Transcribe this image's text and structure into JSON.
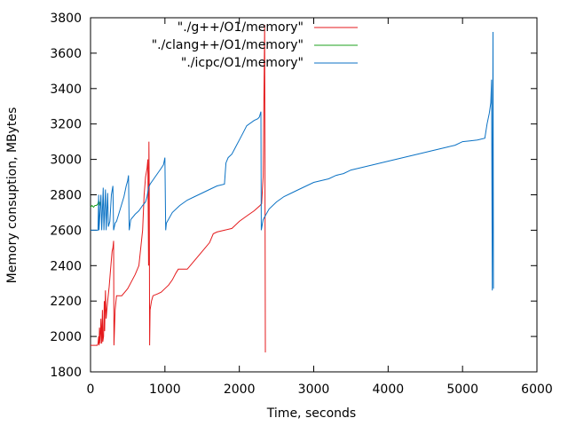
{
  "chart_data": {
    "type": "line",
    "title": "",
    "xlabel": "Time, seconds",
    "ylabel": "Memory consuption, MBytes",
    "xlim": [
      0,
      6000
    ],
    "ylim": [
      1800,
      3800
    ],
    "xticks": [
      0,
      1000,
      2000,
      3000,
      4000,
      5000,
      6000
    ],
    "yticks": [
      1800,
      2000,
      2200,
      2400,
      2600,
      2800,
      3000,
      3200,
      3400,
      3600,
      3800
    ],
    "grid": false,
    "legend_position": "top-right",
    "series": [
      {
        "name": "\"./g++/O1/memory\"",
        "color": "#e41a1c",
        "points": [
          [
            0,
            1950
          ],
          [
            90,
            1950
          ],
          [
            100,
            1960
          ],
          [
            110,
            2000
          ],
          [
            115,
            1950
          ],
          [
            120,
            2050
          ],
          [
            130,
            1960
          ],
          [
            140,
            2100
          ],
          [
            150,
            1960
          ],
          [
            160,
            2150
          ],
          [
            165,
            1970
          ],
          [
            175,
            2000
          ],
          [
            185,
            2200
          ],
          [
            190,
            2030
          ],
          [
            200,
            2260
          ],
          [
            210,
            2100
          ],
          [
            220,
            2150
          ],
          [
            230,
            2200
          ],
          [
            250,
            2280
          ],
          [
            270,
            2380
          ],
          [
            290,
            2480
          ],
          [
            300,
            2500
          ],
          [
            310,
            2540
          ],
          [
            315,
            1950
          ],
          [
            330,
            2150
          ],
          [
            350,
            2230
          ],
          [
            380,
            2230
          ],
          [
            420,
            2230
          ],
          [
            460,
            2250
          ],
          [
            500,
            2270
          ],
          [
            550,
            2310
          ],
          [
            600,
            2350
          ],
          [
            650,
            2400
          ],
          [
            700,
            2600
          ],
          [
            720,
            2800
          ],
          [
            740,
            2900
          ],
          [
            760,
            2950
          ],
          [
            770,
            3000
          ],
          [
            780,
            2400
          ],
          [
            785,
            3100
          ],
          [
            790,
            2800
          ],
          [
            795,
            1950
          ],
          [
            800,
            2150
          ],
          [
            820,
            2200
          ],
          [
            840,
            2230
          ],
          [
            900,
            2240
          ],
          [
            950,
            2250
          ],
          [
            1000,
            2270
          ],
          [
            1050,
            2290
          ],
          [
            1100,
            2320
          ],
          [
            1150,
            2360
          ],
          [
            1180,
            2380
          ],
          [
            1300,
            2380
          ],
          [
            1400,
            2430
          ],
          [
            1500,
            2480
          ],
          [
            1600,
            2530
          ],
          [
            1650,
            2580
          ],
          [
            1700,
            2590
          ],
          [
            1800,
            2600
          ],
          [
            1900,
            2610
          ],
          [
            2000,
            2650
          ],
          [
            2100,
            2680
          ],
          [
            2200,
            2710
          ],
          [
            2280,
            2740
          ],
          [
            2300,
            2750
          ],
          [
            2320,
            2900
          ],
          [
            2340,
            3760
          ],
          [
            2350,
            1910
          ]
        ]
      },
      {
        "name": "\"./clang++/O1/memory\"",
        "color": "#1ea01e",
        "points": [
          [
            0,
            2730
          ],
          [
            20,
            2740
          ],
          [
            40,
            2730
          ],
          [
            60,
            2740
          ],
          [
            80,
            2740
          ],
          [
            100,
            2750
          ],
          [
            110,
            2770
          ],
          [
            120,
            2740
          ],
          [
            125,
            2760
          ]
        ]
      },
      {
        "name": "\"./icpc/O1/memory\"",
        "color": "#0b72c4",
        "points": [
          [
            0,
            2600
          ],
          [
            100,
            2600
          ],
          [
            110,
            2800
          ],
          [
            115,
            2600
          ],
          [
            140,
            2800
          ],
          [
            150,
            2600
          ],
          [
            170,
            2840
          ],
          [
            180,
            2600
          ],
          [
            200,
            2830
          ],
          [
            210,
            2600
          ],
          [
            230,
            2810
          ],
          [
            240,
            2620
          ],
          [
            260,
            2650
          ],
          [
            280,
            2800
          ],
          [
            300,
            2850
          ],
          [
            310,
            2600
          ],
          [
            330,
            2640
          ],
          [
            350,
            2650
          ],
          [
            400,
            2720
          ],
          [
            450,
            2790
          ],
          [
            480,
            2850
          ],
          [
            500,
            2880
          ],
          [
            510,
            2910
          ],
          [
            520,
            2600
          ],
          [
            540,
            2660
          ],
          [
            600,
            2690
          ],
          [
            650,
            2710
          ],
          [
            700,
            2740
          ],
          [
            740,
            2760
          ],
          [
            760,
            2790
          ],
          [
            780,
            2840
          ],
          [
            800,
            2860
          ],
          [
            850,
            2890
          ],
          [
            900,
            2920
          ],
          [
            950,
            2950
          ],
          [
            980,
            2970
          ],
          [
            1000,
            3010
          ],
          [
            1010,
            2600
          ],
          [
            1020,
            2640
          ],
          [
            1100,
            2700
          ],
          [
            1200,
            2740
          ],
          [
            1300,
            2770
          ],
          [
            1400,
            2790
          ],
          [
            1500,
            2810
          ],
          [
            1600,
            2830
          ],
          [
            1700,
            2850
          ],
          [
            1800,
            2860
          ],
          [
            1820,
            2980
          ],
          [
            1850,
            3010
          ],
          [
            1900,
            3030
          ],
          [
            1950,
            3070
          ],
          [
            2000,
            3110
          ],
          [
            2050,
            3150
          ],
          [
            2100,
            3190
          ],
          [
            2200,
            3220
          ],
          [
            2250,
            3230
          ],
          [
            2270,
            3240
          ],
          [
            2290,
            3270
          ],
          [
            2295,
            2600
          ],
          [
            2320,
            2660
          ],
          [
            2400,
            2720
          ],
          [
            2500,
            2760
          ],
          [
            2600,
            2790
          ],
          [
            2700,
            2810
          ],
          [
            2800,
            2830
          ],
          [
            2900,
            2850
          ],
          [
            3000,
            2870
          ],
          [
            3100,
            2880
          ],
          [
            3200,
            2890
          ],
          [
            3300,
            2910
          ],
          [
            3400,
            2920
          ],
          [
            3500,
            2940
          ],
          [
            3600,
            2950
          ],
          [
            3700,
            2960
          ],
          [
            3800,
            2970
          ],
          [
            3900,
            2980
          ],
          [
            4000,
            2990
          ],
          [
            4100,
            3000
          ],
          [
            4200,
            3010
          ],
          [
            4300,
            3020
          ],
          [
            4400,
            3030
          ],
          [
            4500,
            3040
          ],
          [
            4600,
            3050
          ],
          [
            4700,
            3060
          ],
          [
            4800,
            3070
          ],
          [
            4900,
            3080
          ],
          [
            5000,
            3100
          ],
          [
            5100,
            3105
          ],
          [
            5200,
            3110
          ],
          [
            5300,
            3120
          ],
          [
            5330,
            3200
          ],
          [
            5360,
            3260
          ],
          [
            5380,
            3320
          ],
          [
            5390,
            3450
          ],
          [
            5400,
            2260
          ],
          [
            5410,
            3720
          ],
          [
            5415,
            2270
          ]
        ]
      }
    ]
  }
}
